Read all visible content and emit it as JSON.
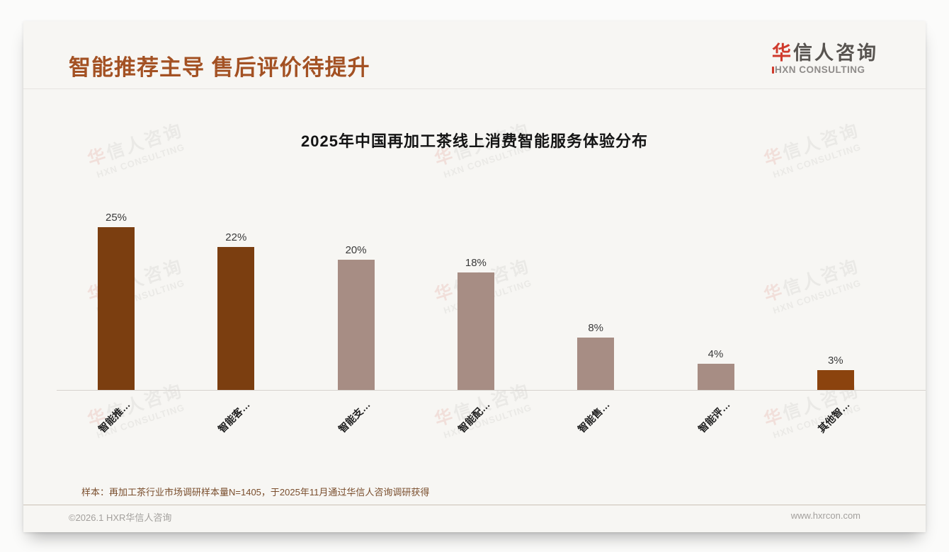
{
  "header": {
    "title": "智能推荐主导 售后评价待提升"
  },
  "logo": {
    "name_accent": "华",
    "name_rest": "信人咨询",
    "subtitle": "HXN CONSULTING",
    "accent_color": "#cf3a2c"
  },
  "watermark": {
    "accent": "华",
    "line1": "华信人咨询",
    "line2": "HXN CONSULTING"
  },
  "chart_data": {
    "type": "bar",
    "title": "2025年中国再加工茶线上消费智能服务体验分布",
    "categories": [
      "智能推…",
      "智能客…",
      "智能支…",
      "智能配…",
      "智能售…",
      "智能评…",
      "其他智…"
    ],
    "values": [
      25,
      22,
      20,
      18,
      8,
      4,
      3
    ],
    "value_labels": [
      "25%",
      "22%",
      "20%",
      "18%",
      "8%",
      "4%",
      "3%"
    ],
    "bar_colors": [
      "#7b3e10",
      "#7b3e10",
      "#a78d84",
      "#a78d84",
      "#a78d84",
      "#a78d84",
      "#8b430e"
    ],
    "xlabel": "",
    "ylabel": "",
    "ylim": [
      0,
      27
    ],
    "grid": false,
    "legend": false,
    "x_tick_rotation": 45
  },
  "footnote": {
    "text": "样本：再加工茶行业市场调研样本量N=1405，于2025年11月通过华信人咨询调研获得"
  },
  "footer": {
    "left": "©2026.1 HXR华信人咨询",
    "right": "www.hxrcon.com"
  }
}
